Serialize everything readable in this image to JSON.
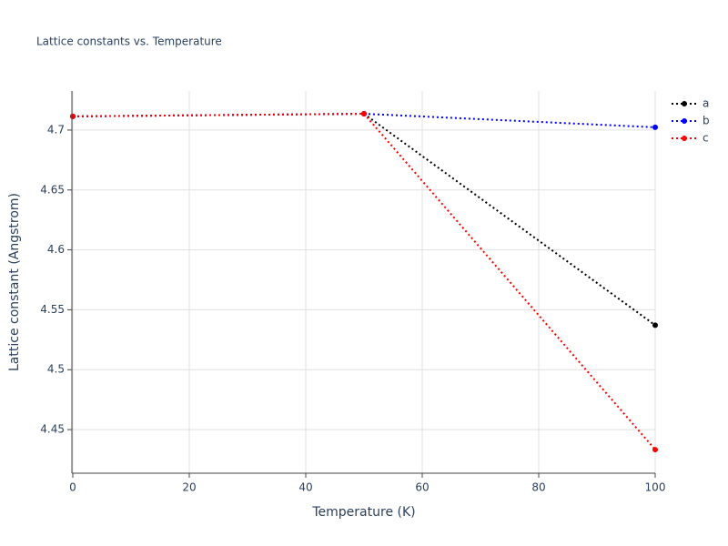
{
  "chart_data": {
    "type": "line",
    "title": "Lattice constants vs. Temperature",
    "x_label": "Temperature (K)",
    "y_label": "Lattice constant (Angstrom)",
    "x": [
      0,
      50,
      100
    ],
    "series": [
      {
        "name": "a",
        "color": "#000000",
        "values": [
          4.7114,
          4.7136,
          4.5371
        ]
      },
      {
        "name": "b",
        "color": "#0000ff",
        "values": [
          4.7114,
          4.7136,
          4.7023
        ]
      },
      {
        "name": "c",
        "color": "#ff0000",
        "values": [
          4.7114,
          4.7136,
          4.4333
        ]
      }
    ],
    "xlim": [
      0,
      100
    ],
    "xticks": [
      0,
      20,
      40,
      60,
      80,
      100
    ],
    "ylim": [
      4.4136,
      4.7326
    ],
    "yticks": [
      4.45,
      4.5,
      4.55,
      4.6,
      4.65,
      4.7
    ],
    "grid": true,
    "legend": "top-right"
  }
}
